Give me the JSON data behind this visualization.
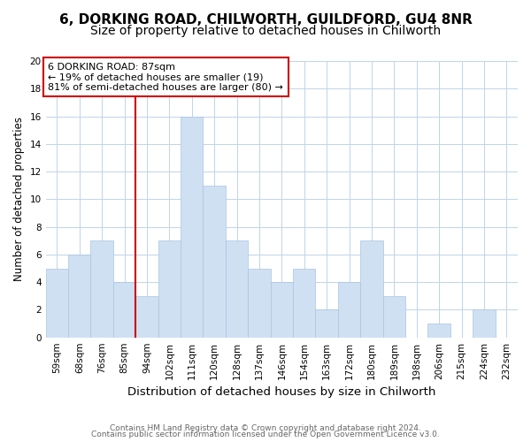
{
  "title1": "6, DORKING ROAD, CHILWORTH, GUILDFORD, GU4 8NR",
  "title2": "Size of property relative to detached houses in Chilworth",
  "xlabel": "Distribution of detached houses by size in Chilworth",
  "ylabel": "Number of detached properties",
  "bar_labels": [
    "59sqm",
    "68sqm",
    "76sqm",
    "85sqm",
    "94sqm",
    "102sqm",
    "111sqm",
    "120sqm",
    "128sqm",
    "137sqm",
    "146sqm",
    "154sqm",
    "163sqm",
    "172sqm",
    "180sqm",
    "189sqm",
    "198sqm",
    "206sqm",
    "215sqm",
    "224sqm",
    "232sqm"
  ],
  "bar_heights": [
    5,
    6,
    7,
    4,
    3,
    7,
    16,
    11,
    7,
    5,
    4,
    5,
    2,
    4,
    7,
    3,
    0,
    1,
    0,
    2,
    0
  ],
  "bar_color": "#cfe0f3",
  "bar_edge_color": "#aac4e0",
  "vline_color": "#cc0000",
  "annotation_title": "6 DORKING ROAD: 87sqm",
  "annotation_line1": "← 19% of detached houses are smaller (19)",
  "annotation_line2": "81% of semi-detached houses are larger (80) →",
  "annotation_box_color": "#ffffff",
  "annotation_box_edge": "#cc0000",
  "ylim": [
    0,
    20
  ],
  "yticks": [
    0,
    2,
    4,
    6,
    8,
    10,
    12,
    14,
    16,
    18,
    20
  ],
  "footer1": "Contains HM Land Registry data © Crown copyright and database right 2024.",
  "footer2": "Contains public sector information licensed under the Open Government Licence v3.0.",
  "background_color": "#ffffff",
  "grid_color": "#c0d4e8",
  "title1_fontsize": 11,
  "title2_fontsize": 10,
  "xlabel_fontsize": 9.5,
  "ylabel_fontsize": 8.5,
  "tick_fontsize": 7.5,
  "footer_fontsize": 6.5
}
